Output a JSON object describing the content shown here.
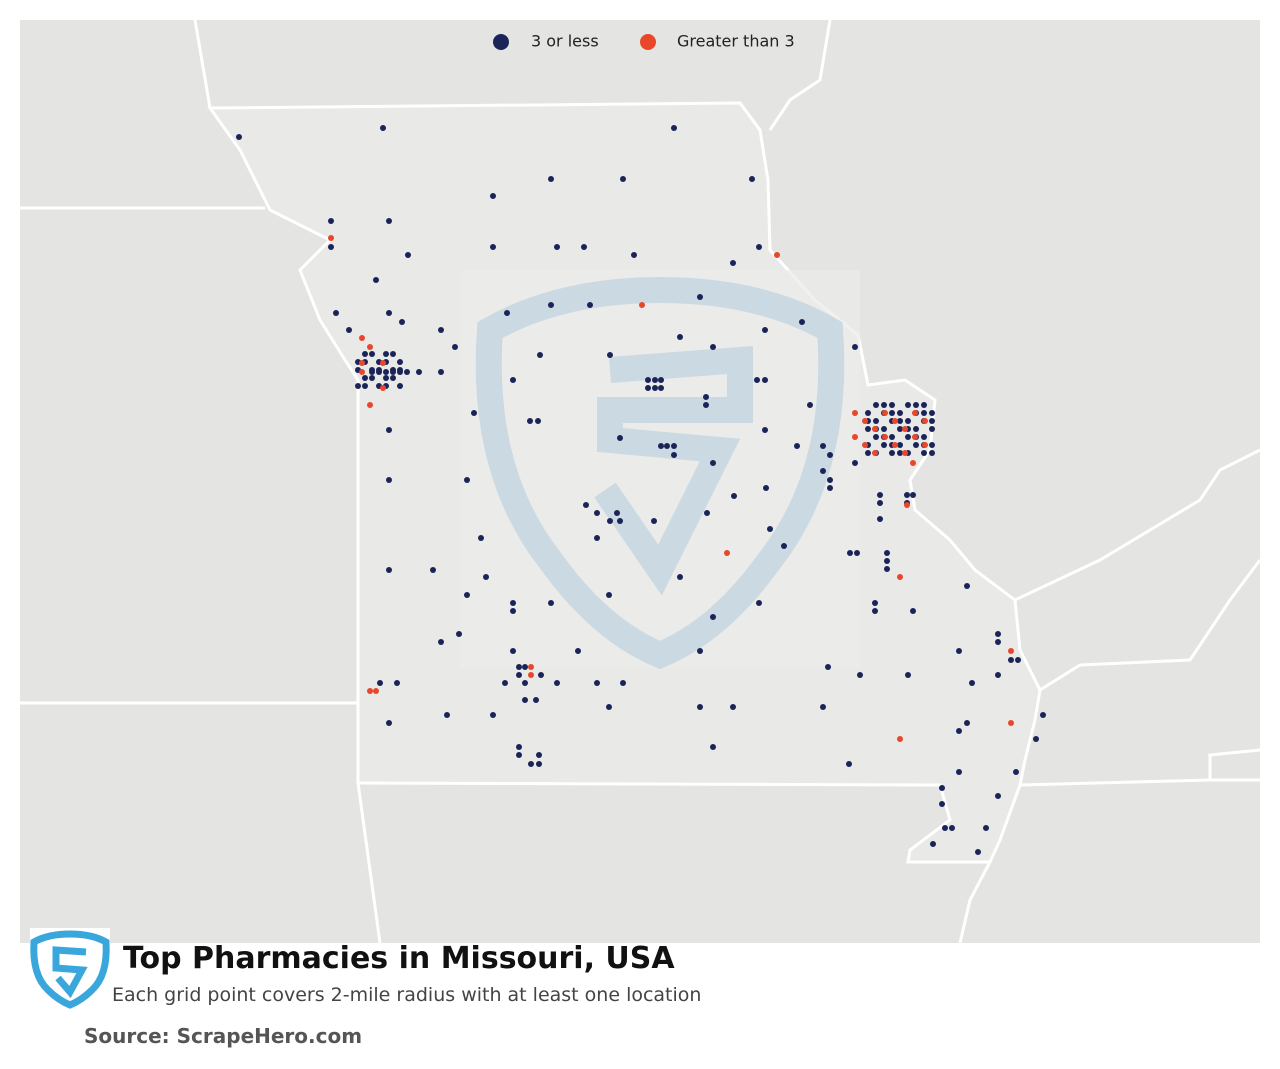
{
  "legend": {
    "items": [
      {
        "label": "3 or less",
        "color": "#1b2458"
      },
      {
        "label": "Greater than 3",
        "color": "#e8472a"
      }
    ]
  },
  "title": "Top Pharmacies in Missouri, USA",
  "subtitle": "Each grid point covers 2-mile radius with at least one location",
  "source": "Source: ScrapeHero.com"
}
